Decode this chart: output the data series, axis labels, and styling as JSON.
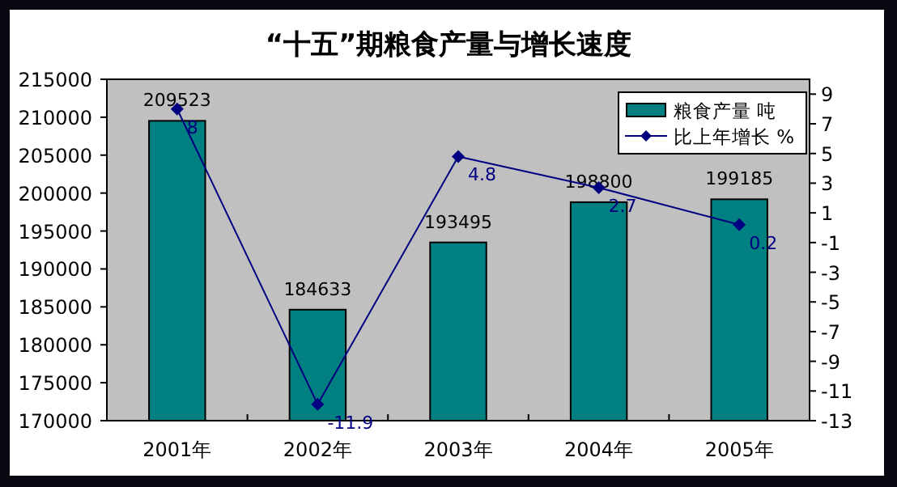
{
  "chart_data": {
    "type": "bar",
    "title": "“十五”期粮食产量与增长速度",
    "categories": [
      "2001年",
      "2002年",
      "2003年",
      "2004年",
      "2005年"
    ],
    "series": [
      {
        "name": "粮食产量  吨",
        "color": "#008080",
        "values": [
          209523,
          184633,
          193495,
          198800,
          199185
        ]
      },
      {
        "name": "比上年增长  %",
        "type": "line",
        "axis": "y2",
        "color": "#000080",
        "marker": "diamond",
        "values": [
          8,
          -11.9,
          4.8,
          2.7,
          0.2
        ]
      }
    ],
    "ylim": [
      170000,
      215000
    ],
    "yticks": [
      170000,
      175000,
      180000,
      185000,
      190000,
      195000,
      200000,
      205000,
      210000,
      215000
    ],
    "y2lim": [
      -13,
      10
    ],
    "y2ticks": [
      -13,
      -11,
      -9,
      -7,
      -5,
      -3,
      -1,
      1,
      3,
      5,
      7,
      9
    ],
    "data_labels": true,
    "legend": "top right",
    "grid": false
  }
}
